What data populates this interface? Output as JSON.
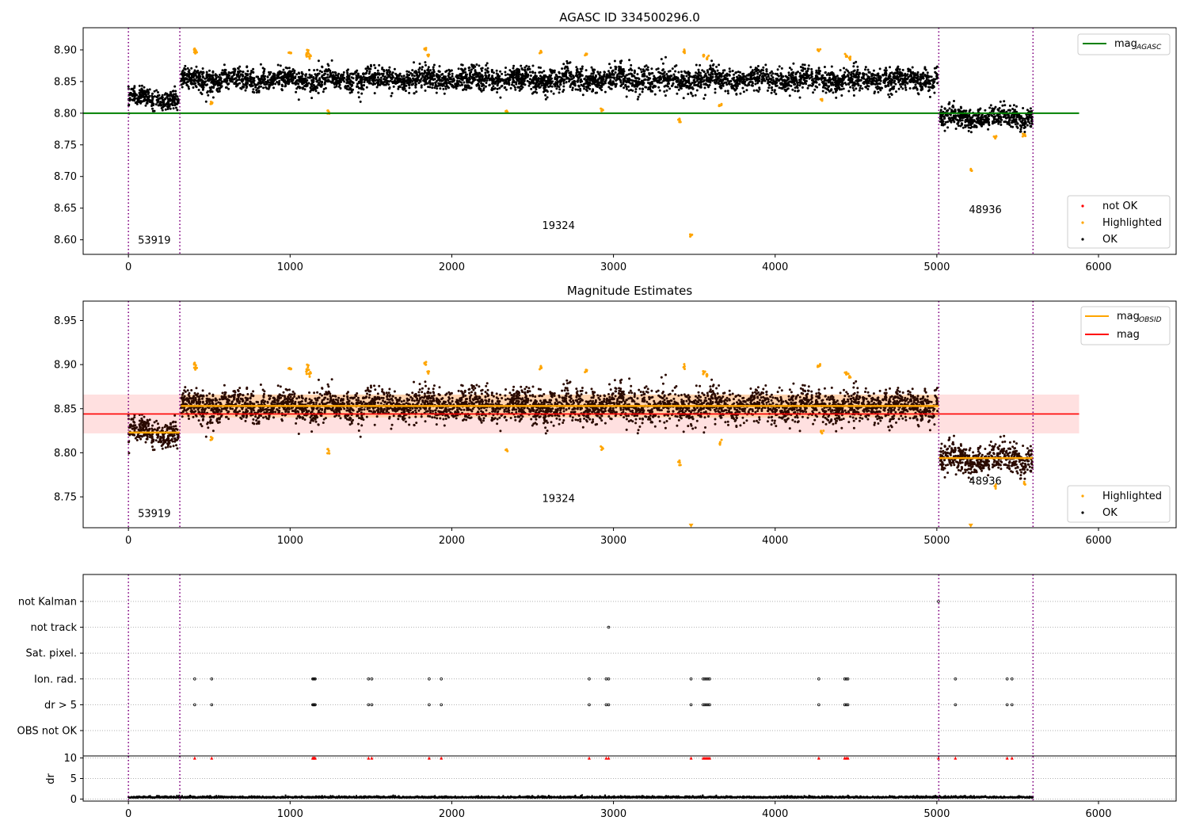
{
  "chart_data": [
    {
      "type": "scatter",
      "title": "AGASC ID 334500296.0",
      "xlabel": "",
      "ylabel": "",
      "xlim": [
        -280,
        6480
      ],
      "ylim": [
        8.577,
        8.935
      ],
      "xticks": [
        0,
        1000,
        2000,
        3000,
        4000,
        5000,
        6000
      ],
      "xtick_labels": [
        "0",
        "1000",
        "2000",
        "3000",
        "4000",
        "5000",
        "6000"
      ],
      "yticks": [
        8.6,
        8.65,
        8.7,
        8.75,
        8.8,
        8.85,
        8.9
      ],
      "ytick_labels": [
        "8.60",
        "8.65",
        "8.70",
        "8.75",
        "8.80",
        "8.85",
        "8.90"
      ],
      "obs_boundaries": [
        0,
        318,
        5012,
        5595
      ],
      "obs_labels": [
        {
          "text": "53919",
          "x": 160,
          "y": 8.594
        },
        {
          "text": "19324",
          "x": 2660,
          "y": 8.617
        },
        {
          "text": "48936",
          "x": 5300,
          "y": 8.642
        }
      ],
      "mag_agasc": {
        "name": "mag",
        "name_sub": "AGASC",
        "value": 8.8,
        "x_range": [
          -280,
          5880
        ],
        "color": "#008000"
      },
      "segments": [
        {
          "x_range": [
            0,
            310
          ],
          "mean": 8.823,
          "spread": 0.007
        },
        {
          "x_range": [
            325,
            5005
          ],
          "mean": 8.853,
          "spread": 0.009
        },
        {
          "x_range": [
            5020,
            5590
          ],
          "mean": 8.793,
          "spread": 0.008
        }
      ],
      "highlighted_points": [
        [
          410,
          8.902
        ],
        [
          415,
          8.897
        ],
        [
          515,
          8.815
        ],
        [
          1000,
          8.895
        ],
        [
          1100,
          8.892
        ],
        [
          1110,
          8.897
        ],
        [
          1120,
          8.889
        ],
        [
          1240,
          8.802
        ],
        [
          1840,
          8.9
        ],
        [
          1850,
          8.892
        ],
        [
          2340,
          8.803
        ],
        [
          2550,
          8.897
        ],
        [
          2830,
          8.894
        ],
        [
          2930,
          8.806
        ],
        [
          3410,
          8.789
        ],
        [
          3440,
          8.898
        ],
        [
          3480,
          8.607
        ],
        [
          3560,
          8.891
        ],
        [
          3580,
          8.888
        ],
        [
          3660,
          8.812
        ],
        [
          4270,
          8.898
        ],
        [
          4290,
          8.822
        ],
        [
          4440,
          8.891
        ],
        [
          4460,
          8.887
        ],
        [
          5210,
          8.71
        ],
        [
          5360,
          8.762
        ],
        [
          5540,
          8.765
        ]
      ],
      "legend_top": [
        {
          "label": "mag",
          "sub": "AGASC",
          "color": "#008000"
        }
      ],
      "legend_bottom": [
        {
          "label": "not OK",
          "color": "#ff0000"
        },
        {
          "label": "Highlighted",
          "color": "#ffa500"
        },
        {
          "label": "OK",
          "color": "#000000"
        }
      ]
    },
    {
      "type": "scatter",
      "title": "Magnitude Estimates",
      "xlabel": "",
      "ylabel": "",
      "xlim": [
        -280,
        6480
      ],
      "ylim": [
        8.715,
        8.972
      ],
      "xticks": [
        0,
        1000,
        2000,
        3000,
        4000,
        5000,
        6000
      ],
      "xtick_labels": [
        "0",
        "1000",
        "2000",
        "3000",
        "4000",
        "5000",
        "6000"
      ],
      "yticks": [
        8.75,
        8.8,
        8.85,
        8.9,
        8.95
      ],
      "ytick_labels": [
        "8.75",
        "8.80",
        "8.85",
        "8.90",
        "8.95"
      ],
      "obs_boundaries": [
        0,
        318,
        5012,
        5595
      ],
      "obs_labels": [
        {
          "text": "53919",
          "x": 160,
          "y": 8.727
        },
        {
          "text": "19324",
          "x": 2660,
          "y": 8.744
        },
        {
          "text": "48936",
          "x": 5300,
          "y": 8.764
        }
      ],
      "mag": {
        "name": "mag",
        "value": 8.844,
        "band": [
          8.822,
          8.866
        ],
        "x_range": [
          -280,
          5880
        ],
        "color": "#ff0000"
      },
      "mag_obsid": [
        {
          "x_range": [
            0,
            318
          ],
          "value": 8.823
        },
        {
          "x_range": [
            325,
            5012
          ],
          "value": 8.853
        },
        {
          "x_range": [
            5012,
            5595
          ],
          "value": 8.794
        }
      ],
      "segments": [
        {
          "x_range": [
            0,
            310
          ],
          "mean": 8.823,
          "spread": 0.007
        },
        {
          "x_range": [
            325,
            5005
          ],
          "mean": 8.853,
          "spread": 0.009
        },
        {
          "x_range": [
            5020,
            5590
          ],
          "mean": 8.793,
          "spread": 0.008
        }
      ],
      "highlighted_points": [
        [
          410,
          8.902
        ],
        [
          415,
          8.897
        ],
        [
          515,
          8.815
        ],
        [
          1000,
          8.895
        ],
        [
          1100,
          8.892
        ],
        [
          1110,
          8.897
        ],
        [
          1120,
          8.889
        ],
        [
          1240,
          8.802
        ],
        [
          1840,
          8.9
        ],
        [
          1850,
          8.892
        ],
        [
          2340,
          8.803
        ],
        [
          2550,
          8.897
        ],
        [
          2830,
          8.894
        ],
        [
          2930,
          8.806
        ],
        [
          3410,
          8.789
        ],
        [
          3440,
          8.898
        ],
        [
          3560,
          8.891
        ],
        [
          3580,
          8.888
        ],
        [
          3660,
          8.812
        ],
        [
          4270,
          8.898
        ],
        [
          4290,
          8.822
        ],
        [
          4440,
          8.891
        ],
        [
          4460,
          8.887
        ],
        [
          5360,
          8.762
        ],
        [
          5540,
          8.765
        ]
      ],
      "offscale_points": [
        [
          3480,
          8.716
        ],
        [
          5210,
          8.716
        ]
      ],
      "legend_top": [
        {
          "label": "mag",
          "sub": "OBSID",
          "color": "#ffa500"
        },
        {
          "label": "mag",
          "sub": "",
          "color": "#ff0000"
        }
      ],
      "legend_bottom": [
        {
          "label": "Highlighted",
          "color": "#ffa500"
        },
        {
          "label": "OK",
          "color": "#000000"
        }
      ]
    },
    {
      "type": "scatter",
      "title": "",
      "xlim": [
        -280,
        6480
      ],
      "xticks": [
        0,
        1000,
        2000,
        3000,
        4000,
        5000,
        6000
      ],
      "xtick_labels": [
        "0",
        "1000",
        "2000",
        "3000",
        "4000",
        "5000",
        "6000"
      ],
      "obs_boundaries": [
        0,
        318,
        5012,
        5595
      ],
      "flag_rows": [
        "not Kalman",
        "not track",
        "Sat. pixel.",
        "Ion. rad.",
        "dr > 5",
        "OBS not OK"
      ],
      "flags": {
        "not Kalman": [
          5010
        ],
        "not track": [
          2970
        ],
        "Sat. pixel.": [],
        "Ion. rad.": [
          410,
          515,
          1140,
          1145,
          1150,
          1155,
          1485,
          1505,
          1860,
          1935,
          2850,
          2955,
          2970,
          3480,
          3555,
          3565,
          3575,
          3585,
          3595,
          4270,
          4430,
          4440,
          4450,
          5115,
          5435,
          5465
        ],
        "dr > 5": [
          410,
          515,
          1140,
          1145,
          1150,
          1155,
          1485,
          1505,
          1860,
          1935,
          2850,
          2955,
          2970,
          3480,
          3555,
          3565,
          3575,
          3585,
          3595,
          4270,
          4430,
          4440,
          4450,
          5115,
          5435,
          5465
        ],
        "OBS not OK": []
      },
      "dr": {
        "ylabel": "dr",
        "ylim": [
          -0.5,
          10.5
        ],
        "yticks": [
          0,
          5,
          10
        ],
        "ytick_labels": [
          "0",
          "5",
          "10"
        ],
        "baseline": 0.3,
        "clipped_value": 10,
        "clipped_x": [
          410,
          515,
          1140,
          1145,
          1150,
          1155,
          1485,
          1505,
          1860,
          1935,
          2850,
          2955,
          2970,
          3480,
          3555,
          3565,
          3575,
          3585,
          3595,
          4270,
          4430,
          4440,
          4450,
          5010,
          5115,
          5435,
          5465
        ]
      }
    }
  ]
}
